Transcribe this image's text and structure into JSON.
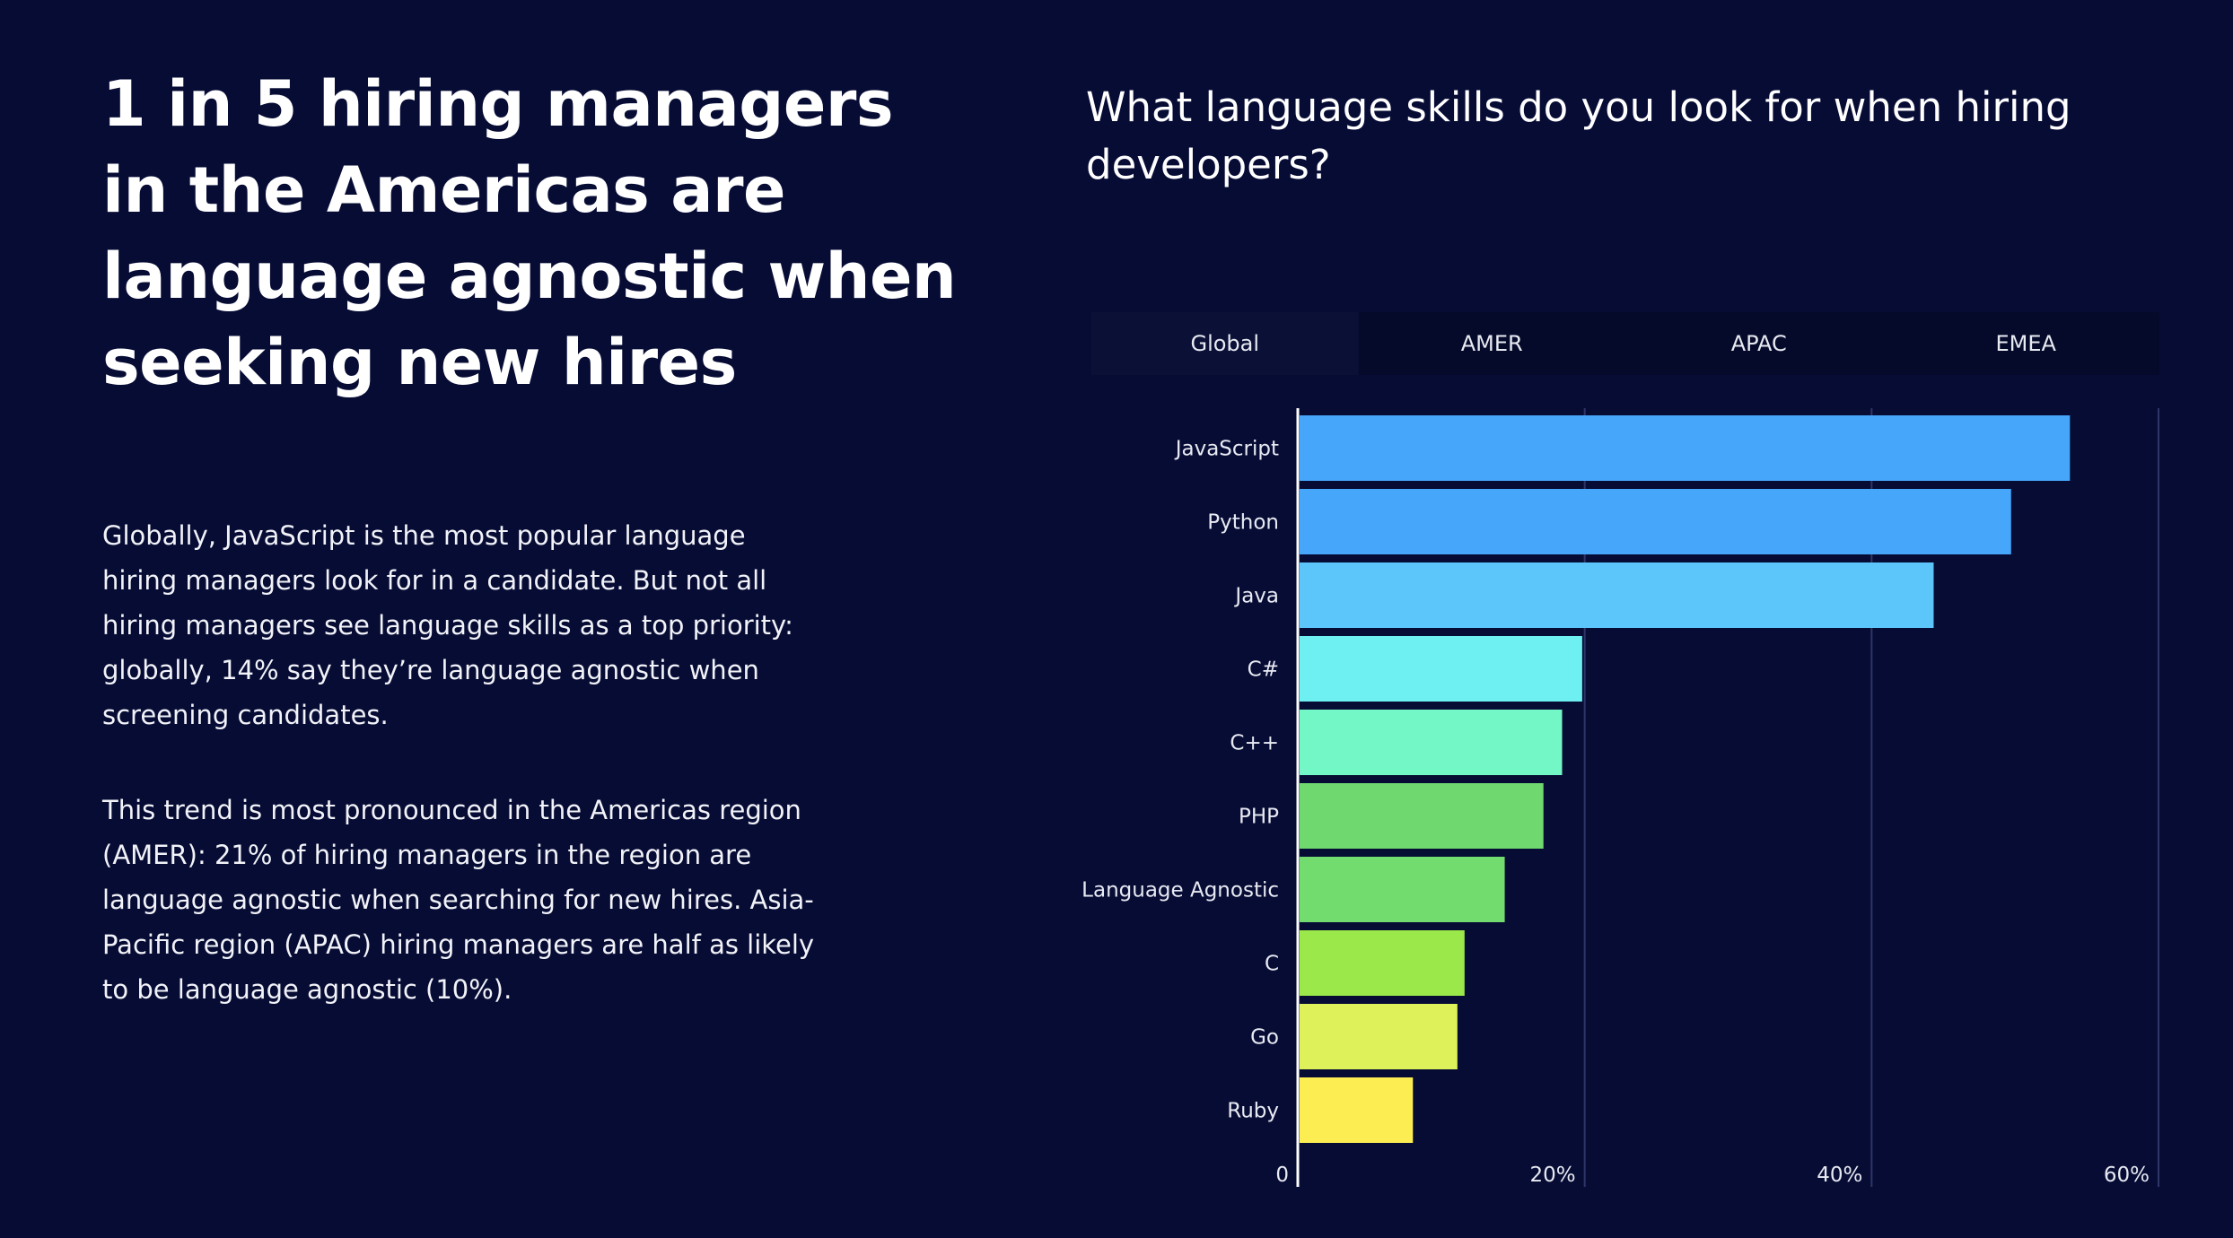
{
  "headline": "1 in 5 hiring managers in the Americas are language agnostic when seeking new hires",
  "paragraphs": [
    "Globally, JavaScript is the most popular language hiring managers look for in a candidate. But not all hiring managers see language skills as a top priority: globally, 14% say they’re language agnostic when screening candidates.",
    "This trend is most pronounced in the Americas region (AMER): 21% of hiring managers in the region are language agnostic when searching for new hires. Asia-Pacific region (APAC) hiring managers are half as likely to be language agnostic (10%)."
  ],
  "question": "What language skills do you look for when hiring developers?",
  "tabs": [
    {
      "label": "Global",
      "active": true
    },
    {
      "label": "AMER",
      "active": false
    },
    {
      "label": "APAC",
      "active": false
    },
    {
      "label": "EMEA",
      "active": false
    }
  ],
  "chart_data": {
    "type": "bar",
    "orientation": "horizontal",
    "categories": [
      "JavaScript",
      "Python",
      "Java",
      "C#",
      "C++",
      "PHP",
      "Language Agnostic",
      "C",
      "Go",
      "Ruby"
    ],
    "values": [
      53.7,
      49.6,
      44.2,
      19.7,
      18.3,
      17.0,
      14.3,
      11.5,
      11.0,
      7.9
    ],
    "colors": [
      "#46a6fa",
      "#46a6fa",
      "#5cc6fb",
      "#6ef0f2",
      "#74f7c6",
      "#6fd86f",
      "#72dc6e",
      "#9be84a",
      "#dff15a",
      "#fcee52"
    ],
    "x_ticks": [
      "0",
      "20%",
      "40%",
      "60%"
    ],
    "x_tick_values": [
      0,
      20,
      40,
      60
    ],
    "xlim": [
      0,
      60
    ],
    "grid": true,
    "title": "",
    "xlabel": "",
    "ylabel": ""
  }
}
